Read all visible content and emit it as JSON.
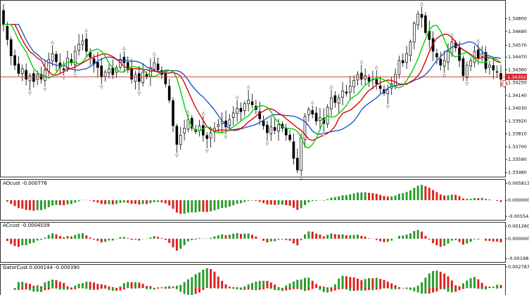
{
  "chart_data": [
    {
      "type": "candlestick",
      "panel": "price",
      "ylim": [
        1.3344,
        1.3496
      ],
      "tick_labels": [
        "1.34800",
        "1.34690",
        "1.34570",
        "1.34470",
        "1.34360",
        "1.34250",
        "1.34140",
        "1.34030",
        "1.33920",
        "1.33810",
        "1.33700",
        "1.33590",
        "1.33480"
      ],
      "tick_values": [
        1.348,
        1.3469,
        1.3457,
        1.3447,
        1.3436,
        1.3425,
        1.3414,
        1.3403,
        1.3392,
        1.3381,
        1.337,
        1.3359,
        1.3348
      ],
      "current_price": 1.343,
      "current_price_label": "1.34302",
      "close": [
        1.3475,
        1.3462,
        1.3448,
        1.344,
        1.3433,
        1.3437,
        1.3428,
        1.3431,
        1.3426,
        1.3432,
        1.3428,
        1.3436,
        1.3445,
        1.345,
        1.3443,
        1.3438,
        1.3436,
        1.3446,
        1.3442,
        1.3452,
        1.3458,
        1.3461,
        1.3452,
        1.3447,
        1.3441,
        1.3438,
        1.343,
        1.3434,
        1.3437,
        1.3432,
        1.3438,
        1.3445,
        1.3442,
        1.3436,
        1.3428,
        1.3432,
        1.3426,
        1.3434,
        1.343,
        1.3438,
        1.3442,
        1.3436,
        1.3432,
        1.3424,
        1.341,
        1.3388,
        1.3372,
        1.338,
        1.3386,
        1.3393,
        1.3386,
        1.3383,
        1.3388,
        1.338,
        1.3377,
        1.3382,
        1.3386,
        1.3389,
        1.3392,
        1.3387,
        1.3393,
        1.3399,
        1.3403,
        1.34,
        1.3407,
        1.341,
        1.3406,
        1.3402,
        1.3394,
        1.3388,
        1.3382,
        1.3387,
        1.3384,
        1.3389,
        1.3386,
        1.338,
        1.3376,
        1.336,
        1.335,
        1.3378,
        1.3396,
        1.3402,
        1.3398,
        1.3392,
        1.3395,
        1.339,
        1.3404,
        1.3412,
        1.3408,
        1.3412,
        1.3418,
        1.3416,
        1.3422,
        1.3427,
        1.3432,
        1.3428,
        1.3431,
        1.3426,
        1.3428,
        1.3424,
        1.342,
        1.3416,
        1.3419,
        1.3424,
        1.3432,
        1.3444,
        1.3442,
        1.345,
        1.346,
        1.3476,
        1.3484,
        1.3481,
        1.3468,
        1.3462,
        1.3452,
        1.3447,
        1.344,
        1.3444,
        1.3452,
        1.346,
        1.3455,
        1.3444,
        1.3431,
        1.344,
        1.3444,
        1.3452,
        1.3446,
        1.345,
        1.3437,
        1.344,
        1.3436,
        1.3434,
        1.3428
      ]
    },
    {
      "type": "bar",
      "panel": "AOcust",
      "title": "AOcust -0.000776",
      "tick_labels": [
        "0.005813",
        "0.000000",
        "-0.005545"
      ],
      "tick_values": [
        0.005813,
        0.0,
        -0.005545
      ]
    },
    {
      "type": "bar",
      "panel": "ACcust",
      "title": "ACcust -0.0004039",
      "tick_labels": [
        "0.0012602",
        "0.0000000",
        "-0.0019830"
      ],
      "tick_values": [
        0.0012602,
        0.0,
        -0.001983
      ]
    },
    {
      "type": "bar",
      "panel": "GatorCust",
      "title": "GatorCust 0.000144 -0.000390",
      "tick_labels": [
        "0.002787"
      ],
      "tick_values": [
        0.002787
      ]
    }
  ],
  "colors": {
    "bull": "#2a9a2a",
    "bear": "#e0201c",
    "green_line": "#00d000",
    "red_line": "#e00000",
    "blue_line": "#1e5ac8",
    "price_line": "#c83232",
    "price_tag": "#d9242a",
    "fractal": "#a0a0a0",
    "grid": "#000000"
  }
}
